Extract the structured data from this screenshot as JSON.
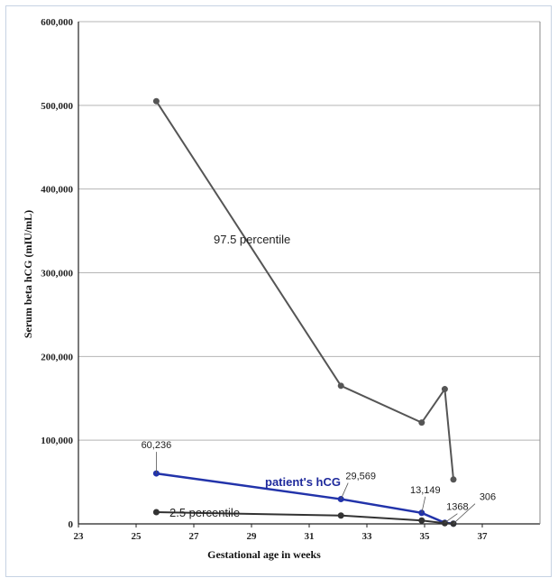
{
  "chart_data": {
    "type": "line",
    "title": "",
    "xlabel": "Gestational age in weeks",
    "ylabel": "Serum beta hCG (mIU/mL)",
    "xlim": [
      23,
      39
    ],
    "ylim": [
      0,
      600000
    ],
    "x_ticks": [
      "23",
      "25",
      "27",
      "29",
      "31",
      "33",
      "35",
      "37"
    ],
    "y_ticks": [
      "0",
      "100,000",
      "200,000",
      "300,000",
      "400,000",
      "500,000",
      "600,000"
    ],
    "grid": "horizontal",
    "series": [
      {
        "name": "97.5 percentile",
        "color": "#555555",
        "points": [
          {
            "x": 25.7,
            "y": 505000
          },
          {
            "x": 32.1,
            "y": 165000
          },
          {
            "x": 34.9,
            "y": 121000
          },
          {
            "x": 35.7,
            "y": 161000
          },
          {
            "x": 36.0,
            "y": 53000
          }
        ]
      },
      {
        "name": "patient's hCG",
        "color": "#2233aa",
        "points": [
          {
            "x": 25.7,
            "y": 60236,
            "label": "60,236"
          },
          {
            "x": 32.1,
            "y": 29569,
            "label": "29,569"
          },
          {
            "x": 34.9,
            "y": 13149,
            "label": "13,149"
          },
          {
            "x": 35.7,
            "y": 1368,
            "label": "1368"
          },
          {
            "x": 36.0,
            "y": 306,
            "label": "306"
          }
        ]
      },
      {
        "name": "2.5 percentile",
        "color": "#333333",
        "points": [
          {
            "x": 25.7,
            "y": 14000
          },
          {
            "x": 32.1,
            "y": 10000
          },
          {
            "x": 34.9,
            "y": 4000
          },
          {
            "x": 35.7,
            "y": 800
          },
          {
            "x": 36.0,
            "y": 200
          }
        ]
      }
    ]
  }
}
